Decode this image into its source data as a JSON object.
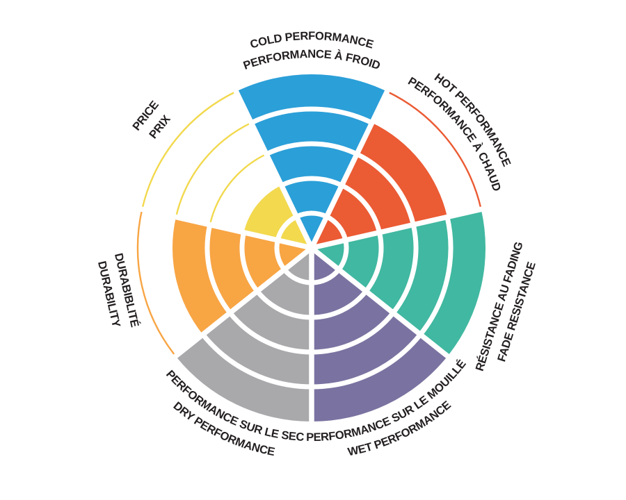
{
  "chart_data": {
    "type": "polar-wheel",
    "description": "Brake/tire performance rating wheel, 7 sectors rated on 5 concentric levels, clockwise from top",
    "scale": {
      "min": 0,
      "max": 5,
      "rings": 5
    },
    "layout_hints": {
      "start": "top",
      "direction": "clockwise",
      "grid": "white ring dividers inside filled wedges",
      "unfilled_levels": "thin colored arcs at empty ring boundaries",
      "legend_position": "labels around rim, bilingual (EN/FR)"
    },
    "sectors": [
      {
        "id": "cold-performance",
        "labels": [
          "COLD PERFORMANCE",
          "PERFORMANCE À FROID"
        ],
        "value": 5,
        "color": "#2B9FD8",
        "label_style": "curved"
      },
      {
        "id": "hot-performance",
        "labels": [
          "HOT PERFORMANCE",
          "PERFORMANCE À CHAUD"
        ],
        "value": 4,
        "color": "#EB5B34",
        "label_style": "curved"
      },
      {
        "id": "fade-resistance",
        "labels": [
          "RÉSISTANCE AU FADING",
          "FADE RESISTANCE"
        ],
        "value": 5,
        "color": "#41B8A1",
        "label_style": "straight"
      },
      {
        "id": "wet-performance",
        "labels": [
          "PERFORMANCE SUR LE MOUILLÉ",
          "WET PERFORMANCE"
        ],
        "value": 5,
        "color": "#7A73A1",
        "label_style": "curved"
      },
      {
        "id": "dry-performance",
        "labels": [
          "PERFORMANCE SUR LE SEC",
          "DRY PERFORMANCE"
        ],
        "value": 5,
        "color": "#A9A9AC",
        "label_style": "curved"
      },
      {
        "id": "durability",
        "labels": [
          "DURABIBLITÉ",
          "DURABILITY"
        ],
        "value": 4,
        "color": "#F8A544",
        "label_style": "straight"
      },
      {
        "id": "price",
        "labels": [
          "PRICE",
          "PRIX"
        ],
        "value": 2,
        "color": "#F2D94E",
        "label_style": "straight"
      }
    ],
    "text_color": "#231F20",
    "background": "#FFFFFF"
  }
}
